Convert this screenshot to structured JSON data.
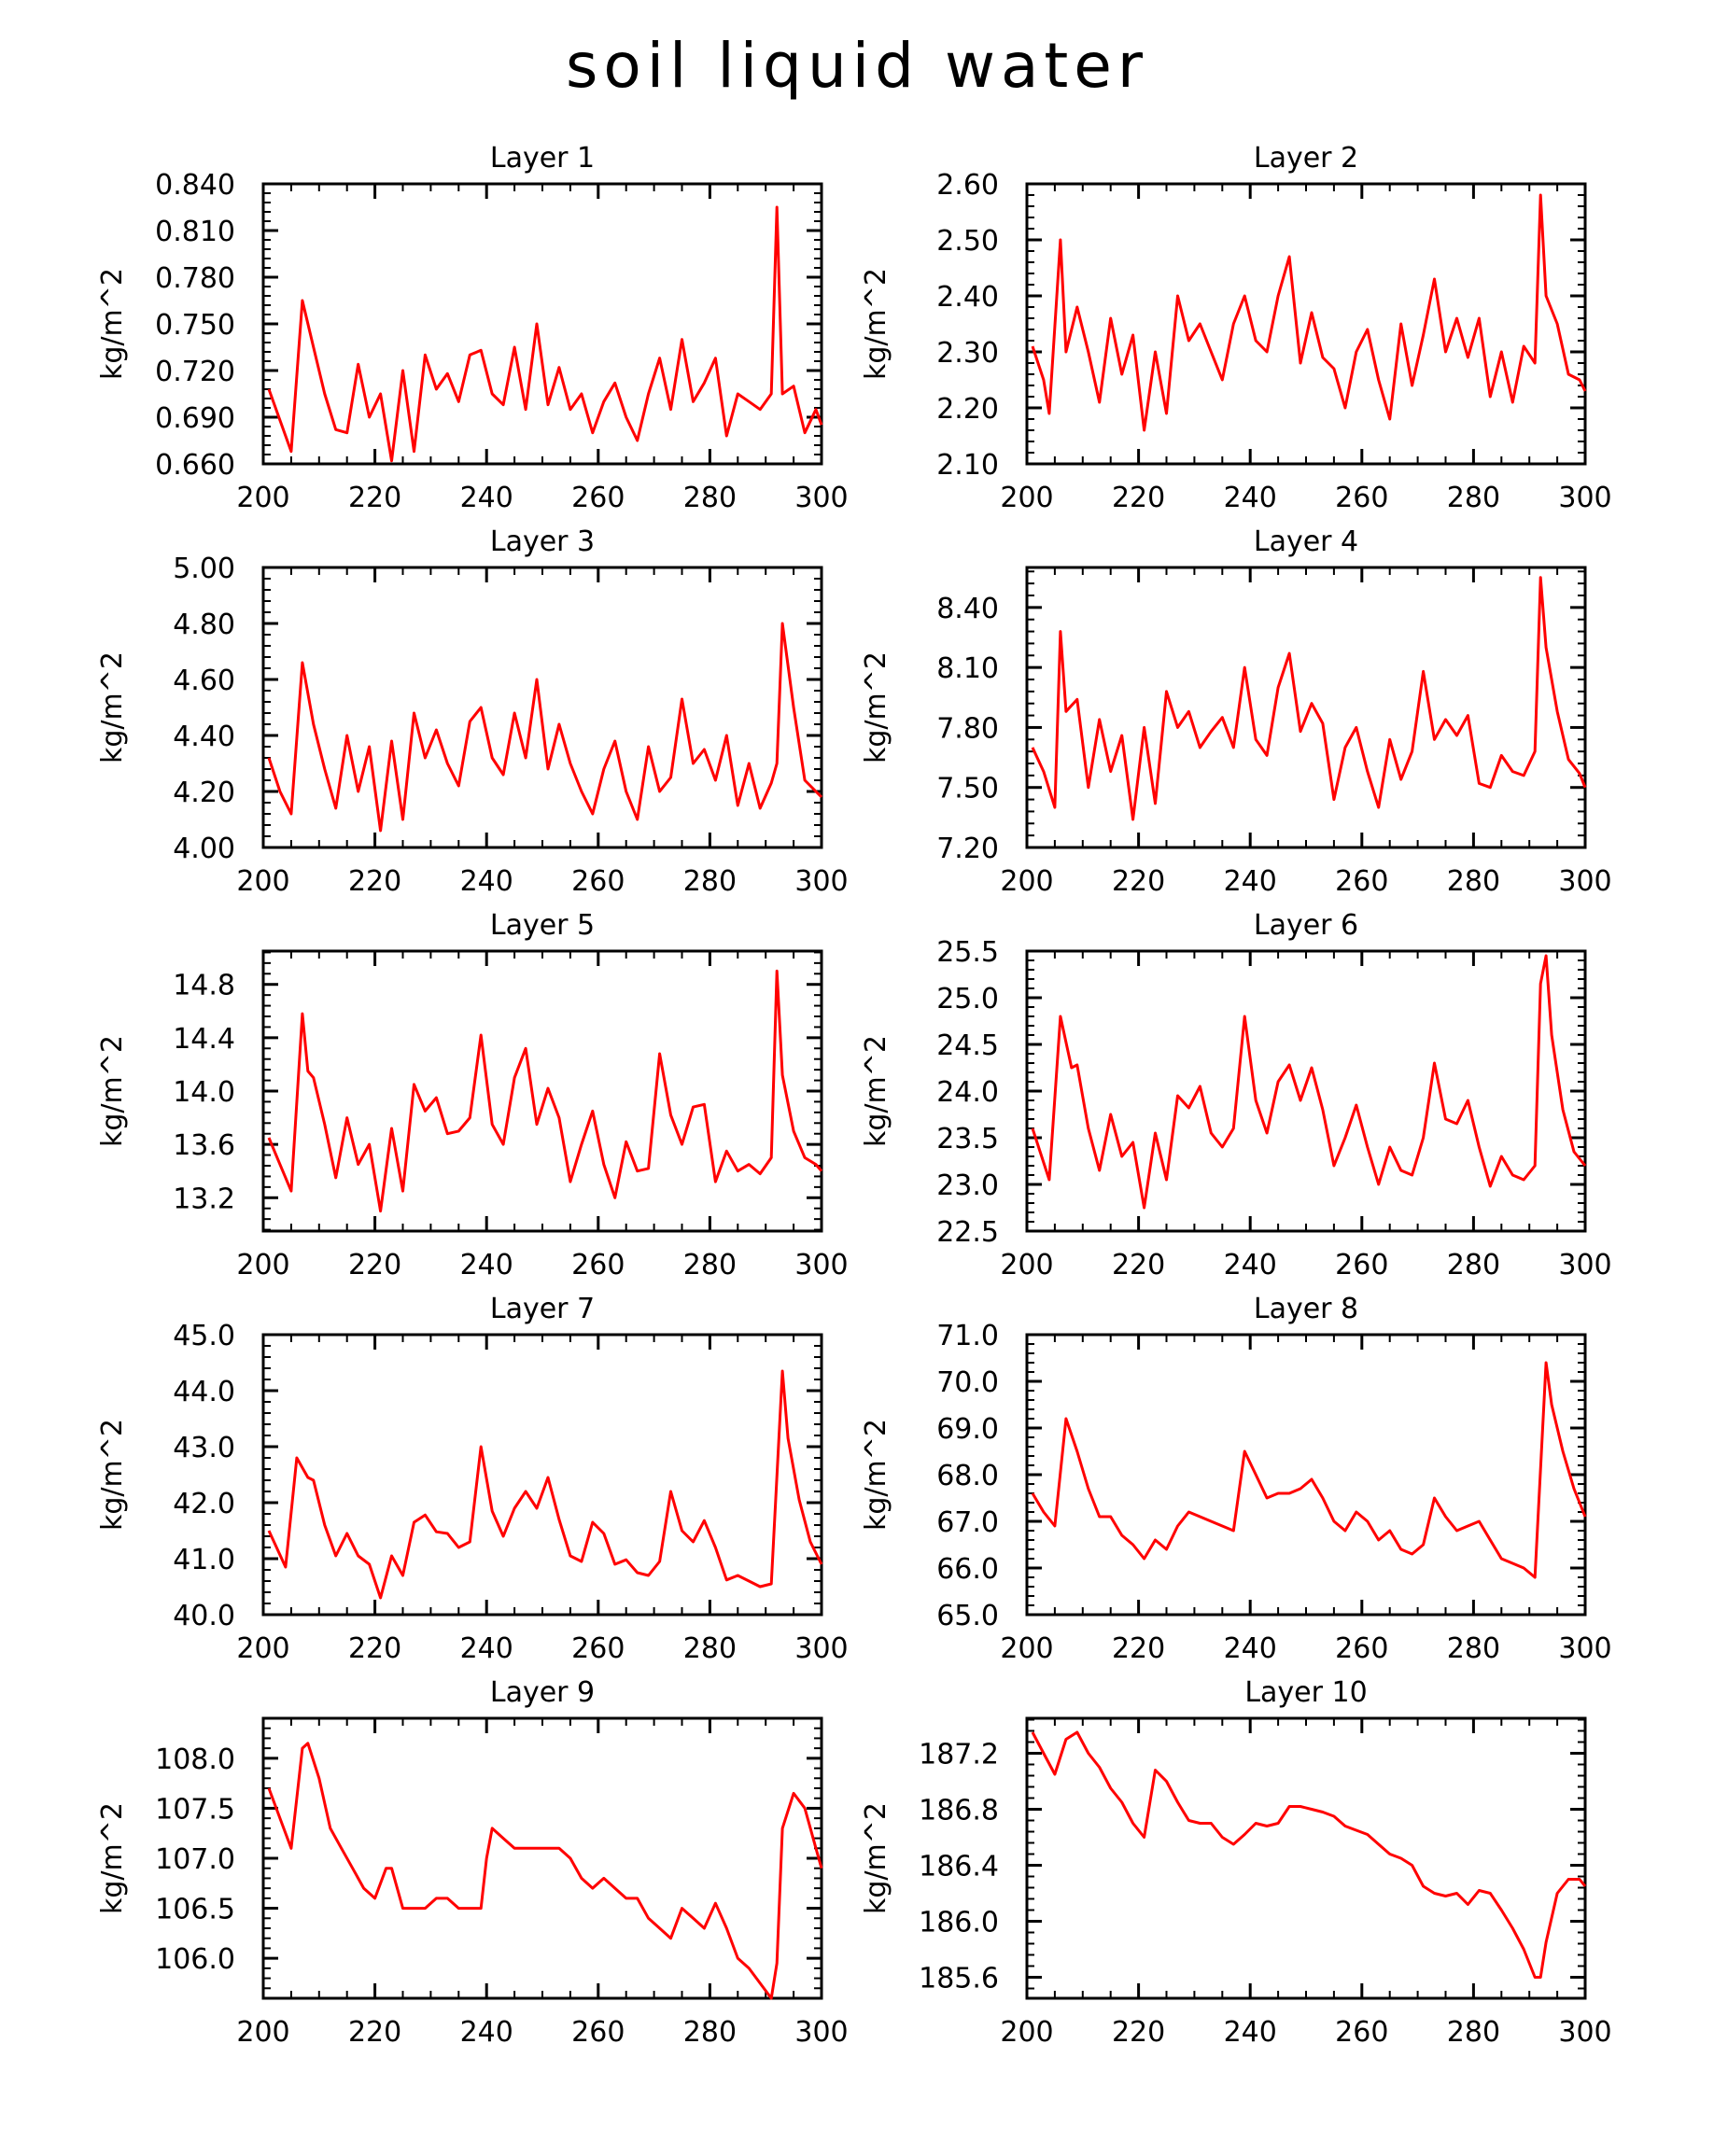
{
  "title": "soil liquid water",
  "colors": {
    "line": "#ff0000",
    "axis": "#000000"
  },
  "chart_data": [
    {
      "type": "line",
      "title": "Layer 1",
      "ylabel": "kg/m^2",
      "xlim": [
        200,
        300
      ],
      "ylim": [
        0.66,
        0.84
      ],
      "xticks": [
        "200",
        "220",
        "240",
        "260",
        "280",
        "300"
      ],
      "yticks": [
        "0.660",
        "0.690",
        "0.720",
        "0.750",
        "0.780",
        "0.810",
        "0.840"
      ],
      "x": [
        201,
        203,
        205,
        207,
        209,
        211,
        213,
        215,
        217,
        219,
        221,
        223,
        225,
        227,
        229,
        231,
        233,
        235,
        237,
        239,
        241,
        243,
        245,
        247,
        249,
        251,
        253,
        255,
        257,
        259,
        261,
        263,
        265,
        267,
        269,
        271,
        273,
        275,
        277,
        279,
        281,
        283,
        285,
        287,
        289,
        291,
        292,
        293,
        295,
        297,
        299,
        300
      ],
      "y": [
        0.708,
        0.688,
        0.668,
        0.765,
        0.735,
        0.705,
        0.682,
        0.68,
        0.724,
        0.69,
        0.705,
        0.662,
        0.72,
        0.668,
        0.73,
        0.708,
        0.718,
        0.7,
        0.73,
        0.733,
        0.705,
        0.698,
        0.735,
        0.695,
        0.75,
        0.698,
        0.722,
        0.695,
        0.705,
        0.68,
        0.7,
        0.712,
        0.69,
        0.675,
        0.705,
        0.728,
        0.695,
        0.74,
        0.7,
        0.712,
        0.728,
        0.678,
        0.705,
        0.7,
        0.695,
        0.705,
        0.825,
        0.705,
        0.71,
        0.68,
        0.695,
        0.685
      ]
    },
    {
      "type": "line",
      "title": "Layer 2",
      "ylabel": "kg/m^2",
      "xlim": [
        200,
        300
      ],
      "ylim": [
        2.1,
        2.6
      ],
      "xticks": [
        "200",
        "220",
        "240",
        "260",
        "280",
        "300"
      ],
      "yticks": [
        "2.10",
        "2.20",
        "2.30",
        "2.40",
        "2.50",
        "2.60"
      ],
      "x": [
        201,
        203,
        204,
        206,
        207,
        209,
        211,
        213,
        215,
        217,
        219,
        221,
        223,
        225,
        227,
        229,
        231,
        233,
        235,
        237,
        239,
        241,
        243,
        245,
        247,
        249,
        251,
        253,
        255,
        257,
        259,
        261,
        263,
        265,
        267,
        269,
        271,
        273,
        275,
        277,
        279,
        281,
        283,
        285,
        287,
        289,
        291,
        292,
        293,
        295,
        297,
        299,
        300
      ],
      "y": [
        2.31,
        2.25,
        2.19,
        2.5,
        2.3,
        2.38,
        2.3,
        2.21,
        2.36,
        2.26,
        2.33,
        2.16,
        2.3,
        2.19,
        2.4,
        2.32,
        2.35,
        2.3,
        2.25,
        2.35,
        2.4,
        2.32,
        2.3,
        2.4,
        2.47,
        2.28,
        2.37,
        2.29,
        2.27,
        2.2,
        2.3,
        2.34,
        2.25,
        2.18,
        2.35,
        2.24,
        2.33,
        2.43,
        2.3,
        2.36,
        2.29,
        2.36,
        2.22,
        2.3,
        2.21,
        2.31,
        2.28,
        2.58,
        2.4,
        2.35,
        2.26,
        2.25,
        2.23
      ]
    },
    {
      "type": "line",
      "title": "Layer 3",
      "ylabel": "kg/m^2",
      "xlim": [
        200,
        300
      ],
      "ylim": [
        4.0,
        5.0
      ],
      "xticks": [
        "200",
        "220",
        "240",
        "260",
        "280",
        "300"
      ],
      "yticks": [
        "4.00",
        "4.20",
        "4.40",
        "4.60",
        "4.80",
        "5.00"
      ],
      "x": [
        201,
        203,
        205,
        207,
        209,
        211,
        213,
        215,
        217,
        219,
        221,
        223,
        225,
        227,
        229,
        231,
        233,
        235,
        237,
        239,
        241,
        243,
        245,
        247,
        249,
        251,
        253,
        255,
        257,
        259,
        261,
        263,
        265,
        267,
        269,
        271,
        273,
        275,
        277,
        279,
        281,
        283,
        285,
        287,
        289,
        291,
        292,
        293,
        295,
        297,
        299,
        300
      ],
      "y": [
        4.32,
        4.2,
        4.12,
        4.66,
        4.44,
        4.28,
        4.14,
        4.4,
        4.2,
        4.36,
        4.06,
        4.38,
        4.1,
        4.48,
        4.32,
        4.42,
        4.3,
        4.22,
        4.45,
        4.5,
        4.32,
        4.26,
        4.48,
        4.32,
        4.6,
        4.28,
        4.44,
        4.3,
        4.2,
        4.12,
        4.28,
        4.38,
        4.2,
        4.1,
        4.36,
        4.2,
        4.25,
        4.53,
        4.3,
        4.35,
        4.24,
        4.4,
        4.15,
        4.3,
        4.14,
        4.23,
        4.3,
        4.8,
        4.5,
        4.24,
        4.2,
        4.18
      ]
    },
    {
      "type": "line",
      "title": "Layer 4",
      "ylabel": "kg/m^2",
      "xlim": [
        200,
        300
      ],
      "ylim": [
        7.2,
        8.6
      ],
      "xticks": [
        "200",
        "220",
        "240",
        "260",
        "280",
        "300"
      ],
      "yticks": [
        "7.20",
        "7.50",
        "7.80",
        "8.10",
        "8.40"
      ],
      "x": [
        201,
        203,
        205,
        206,
        207,
        209,
        211,
        213,
        215,
        217,
        219,
        221,
        223,
        225,
        227,
        229,
        231,
        233,
        235,
        237,
        239,
        241,
        243,
        245,
        247,
        249,
        251,
        253,
        255,
        257,
        259,
        261,
        263,
        265,
        267,
        269,
        271,
        273,
        275,
        277,
        279,
        281,
        283,
        285,
        287,
        289,
        291,
        292,
        293,
        295,
        297,
        299,
        300
      ],
      "y": [
        7.7,
        7.58,
        7.4,
        8.28,
        7.88,
        7.94,
        7.5,
        7.84,
        7.58,
        7.76,
        7.34,
        7.8,
        7.42,
        7.98,
        7.8,
        7.88,
        7.7,
        7.78,
        7.85,
        7.7,
        8.1,
        7.74,
        7.66,
        8.0,
        8.17,
        7.78,
        7.92,
        7.82,
        7.44,
        7.7,
        7.8,
        7.58,
        7.4,
        7.74,
        7.54,
        7.68,
        8.08,
        7.74,
        7.84,
        7.76,
        7.86,
        7.52,
        7.5,
        7.66,
        7.58,
        7.56,
        7.68,
        8.55,
        8.2,
        7.88,
        7.64,
        7.57,
        7.5
      ]
    },
    {
      "type": "line",
      "title": "Layer 5",
      "ylabel": "kg/m^2",
      "xlim": [
        200,
        300
      ],
      "ylim": [
        12.95,
        15.05
      ],
      "xticks": [
        "200",
        "220",
        "240",
        "260",
        "280",
        "300"
      ],
      "yticks": [
        "13.2",
        "13.6",
        "14.0",
        "14.4",
        "14.8"
      ],
      "x": [
        201,
        203,
        205,
        207,
        208,
        209,
        211,
        213,
        215,
        217,
        219,
        221,
        223,
        225,
        227,
        229,
        231,
        233,
        235,
        237,
        239,
        241,
        243,
        245,
        247,
        249,
        251,
        253,
        255,
        257,
        259,
        261,
        263,
        265,
        267,
        269,
        271,
        273,
        275,
        277,
        279,
        281,
        283,
        285,
        287,
        289,
        291,
        292,
        293,
        295,
        297,
        299,
        300
      ],
      "y": [
        13.65,
        13.45,
        13.25,
        14.58,
        14.15,
        14.1,
        13.75,
        13.35,
        13.8,
        13.45,
        13.6,
        13.1,
        13.72,
        13.25,
        14.05,
        13.85,
        13.95,
        13.68,
        13.7,
        13.8,
        14.42,
        13.75,
        13.6,
        14.1,
        14.32,
        13.75,
        14.02,
        13.8,
        13.32,
        13.6,
        13.85,
        13.45,
        13.2,
        13.62,
        13.4,
        13.42,
        14.28,
        13.82,
        13.6,
        13.88,
        13.9,
        13.32,
        13.55,
        13.4,
        13.45,
        13.38,
        13.5,
        14.9,
        14.12,
        13.7,
        13.5,
        13.45,
        13.4
      ]
    },
    {
      "type": "line",
      "title": "Layer 6",
      "ylabel": "kg/m^2",
      "xlim": [
        200,
        300
      ],
      "ylim": [
        22.5,
        25.5
      ],
      "xticks": [
        "200",
        "220",
        "240",
        "260",
        "280",
        "300"
      ],
      "yticks": [
        "22.5",
        "23.0",
        "23.5",
        "24.0",
        "24.5",
        "25.0",
        "25.5"
      ],
      "x": [
        201,
        204,
        206,
        208,
        209,
        211,
        213,
        215,
        217,
        219,
        221,
        223,
        225,
        227,
        229,
        231,
        233,
        235,
        237,
        239,
        241,
        243,
        245,
        247,
        249,
        251,
        253,
        255,
        257,
        259,
        261,
        263,
        265,
        267,
        269,
        271,
        273,
        275,
        277,
        279,
        281,
        283,
        285,
        287,
        289,
        291,
        292,
        293,
        294,
        296,
        298,
        300
      ],
      "y": [
        23.6,
        23.05,
        24.8,
        24.25,
        24.28,
        23.6,
        23.15,
        23.75,
        23.3,
        23.45,
        22.75,
        23.55,
        23.05,
        23.95,
        23.82,
        24.05,
        23.55,
        23.4,
        23.6,
        24.8,
        23.9,
        23.55,
        24.1,
        24.28,
        23.9,
        24.25,
        23.8,
        23.2,
        23.5,
        23.85,
        23.4,
        23.0,
        23.4,
        23.15,
        23.1,
        23.5,
        24.3,
        23.7,
        23.65,
        23.9,
        23.4,
        22.98,
        23.3,
        23.1,
        23.05,
        23.2,
        25.15,
        25.45,
        24.6,
        23.8,
        23.35,
        23.2
      ]
    },
    {
      "type": "line",
      "title": "Layer 7",
      "ylabel": "kg/m^2",
      "xlim": [
        200,
        300
      ],
      "ylim": [
        40.0,
        45.0
      ],
      "xticks": [
        "200",
        "220",
        "240",
        "260",
        "280",
        "300"
      ],
      "yticks": [
        "40.0",
        "41.0",
        "42.0",
        "43.0",
        "44.0",
        "45.0"
      ],
      "x": [
        201,
        204,
        206,
        208,
        209,
        211,
        213,
        215,
        217,
        219,
        221,
        223,
        225,
        227,
        229,
        231,
        233,
        235,
        237,
        239,
        241,
        243,
        245,
        247,
        249,
        251,
        253,
        255,
        257,
        259,
        261,
        263,
        265,
        267,
        269,
        271,
        273,
        275,
        277,
        279,
        281,
        283,
        285,
        287,
        289,
        291,
        293,
        294,
        296,
        298,
        300
      ],
      "y": [
        41.5,
        40.85,
        42.8,
        42.45,
        42.4,
        41.6,
        41.05,
        41.45,
        41.05,
        40.9,
        40.3,
        41.05,
        40.7,
        41.65,
        41.78,
        41.48,
        41.45,
        41.2,
        41.3,
        43.0,
        41.85,
        41.4,
        41.9,
        42.2,
        41.9,
        42.45,
        41.7,
        41.05,
        40.95,
        41.65,
        41.45,
        40.9,
        40.98,
        40.75,
        40.7,
        40.95,
        42.2,
        41.5,
        41.3,
        41.68,
        41.2,
        40.62,
        40.7,
        40.6,
        40.5,
        40.55,
        44.35,
        43.15,
        42.05,
        41.3,
        40.9
      ]
    },
    {
      "type": "line",
      "title": "Layer 8",
      "ylabel": "kg/m^2",
      "xlim": [
        200,
        300
      ],
      "ylim": [
        65.0,
        71.0
      ],
      "xticks": [
        "200",
        "220",
        "240",
        "260",
        "280",
        "300"
      ],
      "yticks": [
        "65.0",
        "66.0",
        "67.0",
        "68.0",
        "69.0",
        "70.0",
        "71.0"
      ],
      "x": [
        201,
        203,
        205,
        207,
        209,
        211,
        213,
        215,
        217,
        219,
        221,
        223,
        225,
        227,
        229,
        231,
        233,
        235,
        237,
        239,
        241,
        243,
        245,
        247,
        249,
        251,
        253,
        255,
        257,
        259,
        261,
        263,
        265,
        267,
        269,
        271,
        273,
        275,
        277,
        279,
        281,
        283,
        285,
        287,
        289,
        291,
        293,
        294,
        296,
        298,
        300
      ],
      "y": [
        67.6,
        67.2,
        66.9,
        69.2,
        68.5,
        67.7,
        67.1,
        67.1,
        66.7,
        66.5,
        66.2,
        66.6,
        66.4,
        66.9,
        67.2,
        67.1,
        67.0,
        66.9,
        66.8,
        68.5,
        68.0,
        67.5,
        67.6,
        67.6,
        67.7,
        67.9,
        67.5,
        67.0,
        66.8,
        67.2,
        67.0,
        66.6,
        66.8,
        66.4,
        66.3,
        66.5,
        67.5,
        67.1,
        66.8,
        66.9,
        67.0,
        66.6,
        66.2,
        66.1,
        66.0,
        65.8,
        70.4,
        69.5,
        68.5,
        67.7,
        67.1
      ]
    },
    {
      "type": "line",
      "title": "Layer 9",
      "ylabel": "kg/m^2",
      "xlim": [
        200,
        300
      ],
      "ylim": [
        105.6,
        108.4
      ],
      "xticks": [
        "200",
        "220",
        "240",
        "260",
        "280",
        "300"
      ],
      "yticks": [
        "106.0",
        "106.5",
        "107.0",
        "107.5",
        "108.0"
      ],
      "x": [
        201,
        203,
        205,
        207,
        208,
        210,
        212,
        214,
        216,
        218,
        220,
        222,
        223,
        225,
        227,
        229,
        231,
        233,
        235,
        237,
        239,
        240,
        241,
        243,
        245,
        247,
        249,
        251,
        253,
        255,
        257,
        259,
        261,
        263,
        265,
        267,
        269,
        271,
        273,
        275,
        277,
        279,
        281,
        283,
        285,
        287,
        289,
        291,
        292,
        293,
        295,
        297,
        299,
        300
      ],
      "y": [
        107.7,
        107.4,
        107.1,
        108.1,
        108.15,
        107.8,
        107.3,
        107.1,
        106.9,
        106.7,
        106.6,
        106.9,
        106.9,
        106.5,
        106.5,
        106.5,
        106.6,
        106.6,
        106.5,
        106.5,
        106.5,
        107.0,
        107.3,
        107.2,
        107.1,
        107.1,
        107.1,
        107.1,
        107.1,
        107.0,
        106.8,
        106.7,
        106.8,
        106.7,
        106.6,
        106.6,
        106.4,
        106.3,
        106.2,
        106.5,
        106.4,
        106.3,
        106.55,
        106.3,
        106.0,
        105.9,
        105.75,
        105.6,
        105.95,
        107.3,
        107.65,
        107.5,
        107.1,
        106.9
      ]
    },
    {
      "type": "line",
      "title": "Layer 10",
      "ylabel": "kg/m^2",
      "xlim": [
        200,
        300
      ],
      "ylim": [
        185.45,
        187.45
      ],
      "xticks": [
        "200",
        "220",
        "240",
        "260",
        "280",
        "300"
      ],
      "yticks": [
        "185.6",
        "186.0",
        "186.4",
        "186.8",
        "187.2"
      ],
      "x": [
        201,
        203,
        205,
        207,
        209,
        211,
        213,
        215,
        217,
        219,
        221,
        223,
        225,
        227,
        229,
        231,
        233,
        235,
        237,
        239,
        241,
        243,
        245,
        247,
        249,
        251,
        253,
        255,
        257,
        259,
        261,
        263,
        265,
        267,
        269,
        271,
        273,
        275,
        277,
        279,
        281,
        283,
        285,
        287,
        289,
        291,
        292,
        293,
        295,
        297,
        299,
        300
      ],
      "y": [
        187.35,
        187.2,
        187.05,
        187.3,
        187.35,
        187.2,
        187.1,
        186.95,
        186.85,
        186.7,
        186.6,
        187.08,
        187.0,
        186.85,
        186.72,
        186.7,
        186.7,
        186.6,
        186.55,
        186.62,
        186.7,
        186.68,
        186.7,
        186.82,
        186.82,
        186.8,
        186.78,
        186.75,
        186.68,
        186.65,
        186.62,
        186.55,
        186.48,
        186.45,
        186.4,
        186.25,
        186.2,
        186.18,
        186.2,
        186.12,
        186.22,
        186.2,
        186.08,
        185.95,
        185.8,
        185.6,
        185.6,
        185.85,
        186.2,
        186.3,
        186.3,
        186.25
      ]
    }
  ]
}
